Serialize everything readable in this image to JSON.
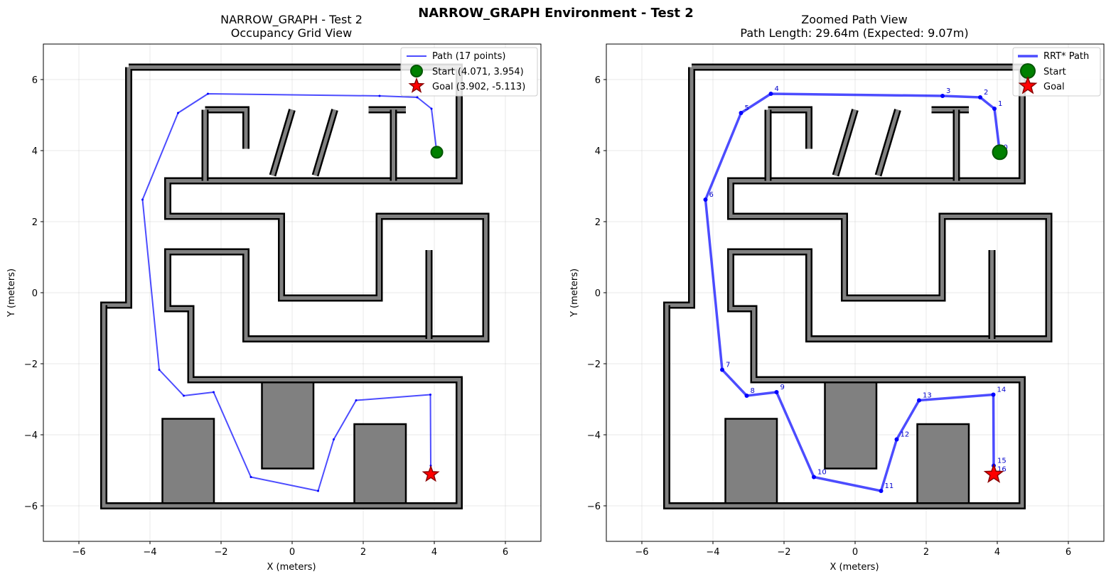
{
  "figure_title": "NARROW_GRAPH Environment - Test 2",
  "colors": {
    "path": "#0000ff",
    "wall_fill": "#808080",
    "wall_edge": "#000000",
    "start_fill": "#008000",
    "start_edge": "#005500",
    "goal_fill": "#ff0000",
    "goal_edge": "#8b0000",
    "grid": "#b0b0b0",
    "label": "#0000cc"
  },
  "panels": [
    {
      "title_line1": "NARROW_GRAPH - Test 2",
      "title_line2": "Occupancy Grid View",
      "xlabel": "X (meters)",
      "ylabel": "Y (meters)"
    },
    {
      "title_line1": "Zoomed Path View",
      "title_line2": "Path Length: 29.64m (Expected: 9.07m)",
      "xlabel": "X (meters)",
      "ylabel": "Y (meters)"
    }
  ],
  "legends": [
    {
      "path": "Path (17 points)",
      "start": "Start (4.071, 3.954)",
      "goal": "Goal (3.902, -5.113)"
    },
    {
      "path": "RRT* Path",
      "start": "Start",
      "goal": "Goal"
    }
  ],
  "chart_data": [
    {
      "type": "line",
      "xlim": [
        -7,
        7
      ],
      "ylim": [
        -7,
        7
      ],
      "xticks": [
        -6,
        -4,
        -2,
        0,
        2,
        4,
        6
      ],
      "yticks": [
        -6,
        -4,
        -2,
        0,
        2,
        4,
        6
      ],
      "grid": true,
      "legend_position": "top-right",
      "series": [
        {
          "name": "Path (17 points)",
          "x": [
            4.07,
            3.92,
            3.52,
            2.46,
            -2.37,
            -3.21,
            -4.21,
            -3.74,
            -3.05,
            -2.21,
            -1.16,
            0.73,
            1.17,
            1.8,
            3.89,
            3.9,
            3.9
          ],
          "y": [
            3.95,
            5.18,
            5.5,
            5.54,
            5.6,
            5.06,
            2.62,
            -2.17,
            -2.9,
            -2.8,
            -5.19,
            -5.58,
            -4.13,
            -3.03,
            -2.87,
            -4.87,
            -5.11
          ]
        }
      ],
      "start": {
        "x": 4.071,
        "y": 3.954
      },
      "goal": {
        "x": 3.902,
        "y": -5.113
      }
    },
    {
      "type": "line",
      "xlim": [
        -7,
        7
      ],
      "ylim": [
        -7,
        7
      ],
      "xticks": [
        -6,
        -4,
        -2,
        0,
        2,
        4,
        6
      ],
      "yticks": [
        -6,
        -4,
        -2,
        0,
        2,
        4,
        6
      ],
      "grid": true,
      "legend_position": "top-right",
      "series": [
        {
          "name": "RRT* Path",
          "x": [
            4.07,
            3.92,
            3.52,
            2.46,
            -2.37,
            -3.21,
            -4.21,
            -3.74,
            -3.05,
            -2.21,
            -1.16,
            0.73,
            1.17,
            1.8,
            3.89,
            3.9,
            3.9
          ],
          "y": [
            3.95,
            5.18,
            5.5,
            5.54,
            5.6,
            5.06,
            2.62,
            -2.17,
            -2.9,
            -2.8,
            -5.19,
            -5.58,
            -4.13,
            -3.03,
            -2.87,
            -4.87,
            -5.11
          ],
          "point_labels": [
            "0",
            "1",
            "2",
            "3",
            "4",
            "5",
            "6",
            "7",
            "8",
            "9",
            "10",
            "11",
            "12",
            "13",
            "14",
            "15",
            "16"
          ]
        }
      ],
      "start": {
        "x": 4.071,
        "y": 3.954
      },
      "goal": {
        "x": 3.902,
        "y": -5.113
      }
    }
  ],
  "map_walls": [
    [
      [
        -4.6,
        6.35
      ],
      [
        4.7,
        6.35
      ],
      [
        4.7,
        3.15
      ],
      [
        -3.5,
        3.15
      ],
      [
        -3.5,
        2.15
      ],
      [
        -0.3,
        2.15
      ],
      [
        -0.3,
        -0.15
      ],
      [
        2.45,
        -0.15
      ],
      [
        2.45,
        2.15
      ],
      [
        5.45,
        2.15
      ],
      [
        5.45,
        -1.3
      ],
      [
        -1.3,
        -1.3
      ],
      [
        -1.3,
        1.15
      ],
      [
        -3.5,
        1.15
      ],
      [
        -3.5,
        -0.45
      ],
      [
        -2.85,
        -0.45
      ],
      [
        -2.85,
        -2.45
      ],
      [
        4.7,
        -2.45
      ],
      [
        4.7,
        -6.0
      ],
      [
        -5.3,
        -6.0
      ],
      [
        -5.3,
        -5.8
      ],
      [
        -5.3,
        -0.35
      ],
      [
        -4.6,
        -0.35
      ],
      [
        -4.6,
        6.35
      ]
    ],
    [
      [
        -2.45,
        5.15
      ],
      [
        -1.3,
        5.15
      ],
      [
        -1.3,
        4.05
      ]
    ],
    [
      [
        -2.45,
        5.15
      ],
      [
        -2.45,
        3.15
      ]
    ],
    [
      [
        2.15,
        5.15
      ],
      [
        3.2,
        5.15
      ]
    ],
    [
      [
        2.85,
        5.15
      ],
      [
        2.85,
        3.15
      ]
    ],
    [
      [
        -0.55,
        3.3
      ],
      [
        0.0,
        5.15
      ]
    ],
    [
      [
        0.65,
        3.3
      ],
      [
        1.2,
        5.15
      ]
    ],
    [
      [
        3.85,
        1.2
      ],
      [
        3.85,
        -1.3
      ]
    ],
    [
      [
        -5.3,
        -0.35
      ],
      [
        -5.3,
        -4.9
      ]
    ]
  ],
  "map_blocks": [
    [
      [
        -3.65,
        -3.55
      ],
      [
        -2.2,
        -3.55
      ],
      [
        -2.2,
        -6.0
      ],
      [
        -3.65,
        -6.0
      ]
    ],
    [
      [
        -0.85,
        -2.45
      ],
      [
        0.6,
        -2.45
      ],
      [
        0.6,
        -4.95
      ],
      [
        -0.85,
        -4.95
      ]
    ],
    [
      [
        1.75,
        -3.7
      ],
      [
        3.2,
        -3.7
      ],
      [
        3.2,
        -6.0
      ],
      [
        1.75,
        -6.0
      ]
    ]
  ]
}
